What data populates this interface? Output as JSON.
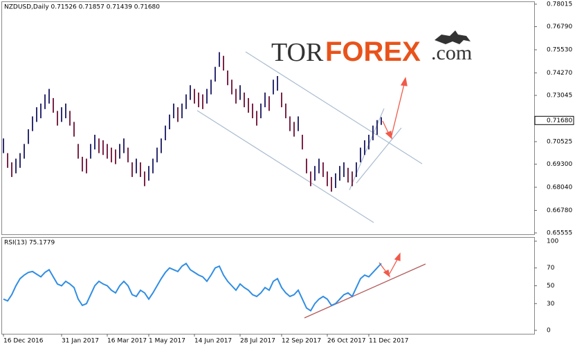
{
  "watermark": {
    "part1": "TOR",
    "part2": "FOREX",
    "part3": ".com"
  },
  "chart_data": [
    {
      "type": "ohlc",
      "title": "NZDUSD,Daily  0.71526 0.71857 0.71439 0.71680",
      "categories": [
        "16 Dec 2016",
        null,
        null,
        null,
        null,
        null,
        null,
        null,
        null,
        null,
        null,
        null,
        null,
        null,
        "31 Jan 2017",
        null,
        null,
        null,
        null,
        null,
        null,
        null,
        null,
        null,
        null,
        "16 Mar 2017",
        null,
        null,
        null,
        null,
        null,
        null,
        null,
        null,
        null,
        "1 May 2017",
        null,
        null,
        null,
        null,
        null,
        null,
        null,
        null,
        null,
        null,
        "14 Jun 2017",
        null,
        null,
        null,
        null,
        null,
        null,
        null,
        null,
        null,
        null,
        "28 Jul 2017",
        null,
        null,
        null,
        null,
        null,
        null,
        null,
        null,
        null,
        "12 Sep 2017",
        null,
        null,
        null,
        null,
        null,
        null,
        null,
        null,
        null,
        null,
        "26 Oct 2017",
        null,
        null,
        null,
        null,
        null,
        null,
        null,
        null,
        null,
        "11 Dec 2017",
        null,
        null,
        null
      ],
      "high": [
        0.707,
        0.699,
        0.694,
        0.696,
        0.699,
        0.704,
        0.712,
        0.719,
        0.724,
        0.726,
        0.731,
        0.734,
        0.729,
        0.722,
        0.724,
        0.726,
        0.722,
        0.716,
        0.704,
        0.697,
        0.696,
        0.704,
        0.709,
        0.707,
        0.706,
        0.704,
        0.702,
        0.701,
        0.704,
        0.707,
        0.702,
        0.694,
        0.696,
        0.694,
        0.689,
        0.692,
        0.696,
        0.702,
        0.707,
        0.714,
        0.72,
        0.726,
        0.724,
        0.726,
        0.731,
        0.736,
        0.734,
        0.732,
        0.731,
        0.734,
        0.739,
        0.746,
        0.754,
        0.752,
        0.744,
        0.739,
        0.734,
        0.736,
        0.732,
        0.729,
        0.726,
        0.722,
        0.726,
        0.732,
        0.73,
        0.739,
        0.741,
        0.732,
        0.726,
        0.719,
        0.716,
        0.719,
        0.709,
        0.696,
        0.689,
        0.692,
        0.696,
        0.694,
        0.689,
        0.686,
        0.688,
        0.692,
        0.694,
        0.691,
        0.689,
        0.694,
        0.702,
        0.706,
        0.709,
        0.714,
        0.717,
        0.71857
      ],
      "low": [
        0.699,
        0.691,
        0.686,
        0.688,
        0.691,
        0.696,
        0.704,
        0.711,
        0.716,
        0.718,
        0.723,
        0.726,
        0.721,
        0.714,
        0.716,
        0.718,
        0.714,
        0.708,
        0.696,
        0.689,
        0.688,
        0.696,
        0.701,
        0.699,
        0.698,
        0.696,
        0.694,
        0.693,
        0.696,
        0.699,
        0.694,
        0.686,
        0.688,
        0.686,
        0.681,
        0.684,
        0.688,
        0.694,
        0.699,
        0.706,
        0.712,
        0.718,
        0.716,
        0.718,
        0.723,
        0.728,
        0.726,
        0.724,
        0.723,
        0.726,
        0.731,
        0.738,
        0.746,
        0.744,
        0.736,
        0.731,
        0.726,
        0.728,
        0.724,
        0.721,
        0.718,
        0.714,
        0.718,
        0.724,
        0.722,
        0.731,
        0.733,
        0.724,
        0.718,
        0.711,
        0.708,
        0.711,
        0.701,
        0.688,
        0.681,
        0.684,
        0.688,
        0.686,
        0.681,
        0.678,
        0.68,
        0.684,
        0.686,
        0.683,
        0.681,
        0.686,
        0.694,
        0.698,
        0.701,
        0.706,
        0.709,
        0.71439
      ],
      "up_color": "#2d2d70",
      "down_color": "#7a2446",
      "ylim": [
        0.65555,
        0.78015
      ],
      "yticks": [
        {
          "value": 0.65555,
          "label": "0.65555"
        },
        {
          "value": 0.6678,
          "label": "0.66780"
        },
        {
          "value": 0.6804,
          "label": "0.68040"
        },
        {
          "value": 0.693,
          "label": "0.69300"
        },
        {
          "value": 0.70525,
          "label": "0.70525"
        },
        {
          "value": 0.73045,
          "label": "0.73045"
        },
        {
          "value": 0.7427,
          "label": "0.74270"
        },
        {
          "value": 0.7553,
          "label": "0.75530"
        },
        {
          "value": 0.7679,
          "label": "0.76790"
        },
        {
          "value": 0.78015,
          "label": "0.78015"
        }
      ],
      "last_price": {
        "value": 0.7168,
        "label": "0.71680"
      }
    },
    {
      "type": "line",
      "title": "RSI(13) 75.1779",
      "values": [
        35,
        33,
        40,
        50,
        58,
        62,
        65,
        66,
        63,
        60,
        65,
        68,
        60,
        52,
        50,
        55,
        52,
        48,
        35,
        28,
        30,
        40,
        50,
        55,
        52,
        50,
        45,
        42,
        50,
        55,
        50,
        40,
        38,
        45,
        42,
        35,
        42,
        50,
        58,
        65,
        70,
        68,
        66,
        72,
        75,
        68,
        65,
        62,
        60,
        55,
        62,
        70,
        72,
        62,
        55,
        50,
        45,
        52,
        48,
        45,
        40,
        38,
        42,
        48,
        45,
        55,
        58,
        48,
        42,
        38,
        40,
        45,
        35,
        25,
        22,
        30,
        35,
        38,
        35,
        28,
        30,
        35,
        40,
        42,
        38,
        48,
        58,
        62,
        60,
        65,
        70,
        75
      ],
      "color": "#2f8de4",
      "ylim": [
        0,
        100
      ],
      "yticks": [
        0,
        30,
        50,
        70,
        100
      ]
    }
  ]
}
